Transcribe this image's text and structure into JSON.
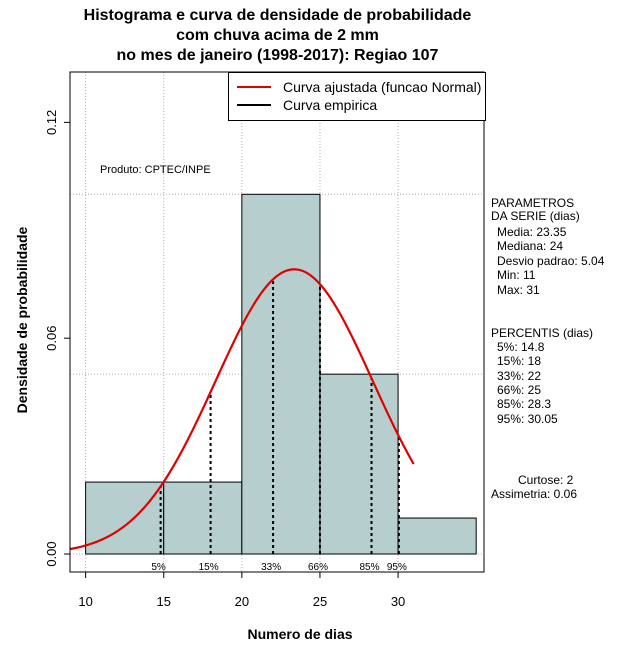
{
  "chart_data": {
    "type": "histogram",
    "title_lines": [
      "Histograma e curva de densidade de probabilidade",
      "com chuva acima de 2 mm",
      "no mes de janeiro (1998-2017): Regiao 107"
    ],
    "xlabel": "Numero de dias",
    "ylabel": "Densidade de probabilidade",
    "xlim": [
      9,
      35.5
    ],
    "ylim": [
      -0.005,
      0.134
    ],
    "x_ticks": [
      10,
      15,
      20,
      25,
      30
    ],
    "y_ticks": [
      0.0,
      0.06,
      0.12
    ],
    "y_tick_labels": [
      "0.00",
      "0.06",
      "0.12"
    ],
    "x_gridlines": [
      10,
      15,
      20,
      25,
      30
    ],
    "y_gridlines": [
      0.0,
      0.05,
      0.1
    ],
    "bins": [
      {
        "from": 10,
        "to": 15,
        "density": 0.02
      },
      {
        "from": 15,
        "to": 20,
        "density": 0.02
      },
      {
        "from": 20,
        "to": 25,
        "density": 0.1
      },
      {
        "from": 25,
        "to": 30,
        "density": 0.05
      },
      {
        "from": 30,
        "to": 35,
        "density": 0.01
      }
    ],
    "normal_fit": {
      "mean": 23.35,
      "sd": 5.04,
      "x_from": 9,
      "x_to": 31
    },
    "percentile_lines": [
      {
        "label": "5%",
        "x": 14.8
      },
      {
        "label": "15%",
        "x": 18
      },
      {
        "label": "33%",
        "x": 22
      },
      {
        "label": "66%",
        "x": 25
      },
      {
        "label": "85%",
        "x": 28.3
      },
      {
        "label": "95%",
        "x": 30.05
      }
    ],
    "legend": [
      {
        "label": "Curva ajustada (funcao Normal)",
        "color": "#e00000"
      },
      {
        "label": "Curva empirica",
        "color": "#000000"
      }
    ],
    "annotation": "Produto: CPTEC/INPE",
    "colors": {
      "bar_fill": "#b6cfce",
      "curve": "#e00000",
      "grid": "#b0b0b0"
    }
  },
  "side_panel": {
    "parametros_title_1": "PARAMETROS",
    "parametros_title_2": "DA SERIE (dias)",
    "media": "Media: 23.35",
    "mediana": "Mediana: 24",
    "desvio": "Desvio padrao: 5.04",
    "min": "Min: 11",
    "max": "Max: 31",
    "percentis_title": "PERCENTIS (dias)",
    "p5": "5%: 14.8",
    "p15": "15%: 18",
    "p33": "33%: 22",
    "p66": "66%: 25",
    "p85": "85%: 28.3",
    "p95": "95%: 30.05",
    "curtose": "Curtose: 2",
    "assimetria": "Assimetria: 0.06"
  }
}
